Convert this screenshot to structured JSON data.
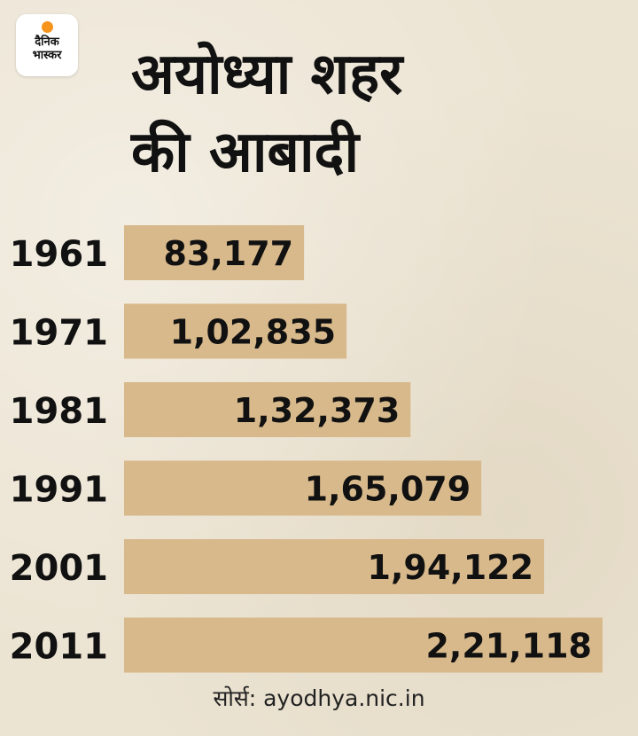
{
  "logo": {
    "line1": "दैनिक",
    "line2": "भास्कर"
  },
  "title": {
    "line1": "अयोध्या शहर",
    "line2": "की आबादी"
  },
  "source": "सोर्स: ayodhya.nic.in",
  "colors": {
    "bar": "#d8b98b",
    "text": "#111111",
    "accent": "#f7941d"
  },
  "chart_data": {
    "type": "bar",
    "orientation": "horizontal",
    "title": "अयोध्या शहर की आबादी",
    "categories": [
      "1961",
      "1971",
      "1981",
      "1991",
      "2001",
      "2011"
    ],
    "values": [
      83177,
      102835,
      132373,
      165079,
      194122,
      221118
    ],
    "value_labels": [
      "83,177",
      "1,02,835",
      "1,32,373",
      "1,65,079",
      "1,94,122",
      "2,21,118"
    ],
    "xlabel": "",
    "ylabel": "",
    "grid": false,
    "legend": "none"
  }
}
